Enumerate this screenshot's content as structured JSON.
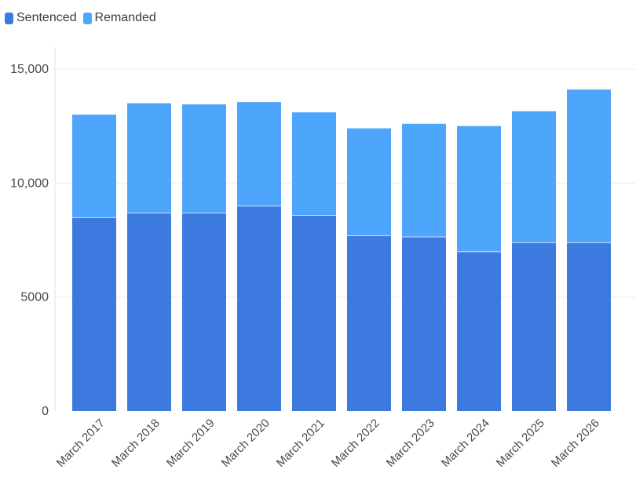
{
  "chart_data": {
    "type": "bar",
    "stacked": true,
    "categories": [
      "March 2017",
      "March 2018",
      "March 2019",
      "March 2020",
      "March 2021",
      "March 2022",
      "March 2023",
      "March 2024",
      "March 2025",
      "March 2026"
    ],
    "series": [
      {
        "name": "Sentenced",
        "color": "#3d7ae0",
        "values": [
          8500,
          8700,
          8700,
          9000,
          8600,
          7700,
          7650,
          7000,
          7400,
          7400
        ]
      },
      {
        "name": "Remanded",
        "color": "#4da6fb",
        "values": [
          4500,
          4800,
          4750,
          4550,
          4500,
          4700,
          4950,
          5500,
          5750,
          6700
        ]
      }
    ],
    "yticks": [
      "0",
      "5000",
      "10,000",
      "15,000"
    ],
    "ylim": [
      0,
      15000
    ],
    "grid": true,
    "legend": "top-left"
  }
}
